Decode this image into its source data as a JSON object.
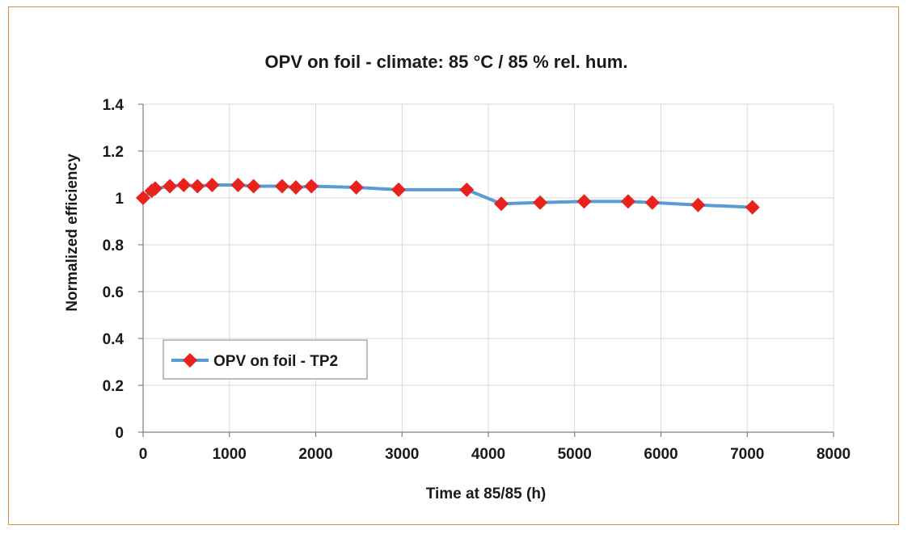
{
  "chart_data": {
    "type": "line",
    "title": "OPV on foil - climate: 85 °C / 85 % rel. hum.",
    "xlabel": "Time at 85/85 (h)",
    "ylabel": "Normalized efficiency",
    "xlim": [
      0,
      8000
    ],
    "ylim": [
      0,
      1.4
    ],
    "x_ticks": [
      0,
      1000,
      2000,
      3000,
      4000,
      5000,
      6000,
      7000,
      8000
    ],
    "y_ticks": [
      0,
      0.2,
      0.4,
      0.6,
      0.8,
      1,
      1.2,
      1.4
    ],
    "x_tick_labels": [
      "0",
      "1000",
      "2000",
      "3000",
      "4000",
      "5000",
      "6000",
      "7000",
      "8000"
    ],
    "y_tick_labels": [
      "0",
      "0.2",
      "0.4",
      "0.6",
      "0.8",
      "1",
      "1.2",
      "1.4"
    ],
    "grid": true,
    "legend_position": "bottom-left",
    "series": [
      {
        "name": "OPV on foil - TP2",
        "line_color": "#5b9bd5",
        "marker_color": "#e8231d",
        "marker": "diamond",
        "x": [
          0,
          100,
          140,
          310,
          470,
          630,
          800,
          1100,
          1280,
          1610,
          1770,
          1950,
          2470,
          2960,
          3750,
          4150,
          4600,
          5110,
          5620,
          5900,
          6430,
          7060
        ],
        "y": [
          1.0,
          1.03,
          1.04,
          1.05,
          1.055,
          1.05,
          1.055,
          1.055,
          1.05,
          1.05,
          1.045,
          1.05,
          1.045,
          1.035,
          1.035,
          0.975,
          0.98,
          0.985,
          0.985,
          0.98,
          0.97,
          0.96
        ]
      }
    ]
  }
}
